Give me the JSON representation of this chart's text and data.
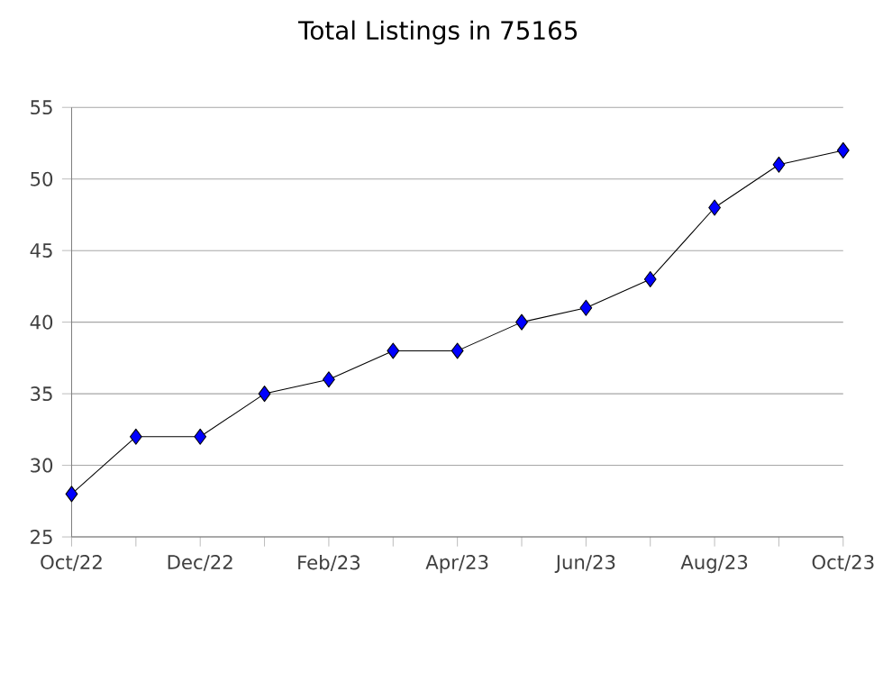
{
  "chart_data": {
    "type": "line",
    "title": "Total Listings in 75165",
    "categories": [
      "Oct/22",
      null,
      "Dec/22",
      null,
      "Feb/23",
      null,
      "Apr/23",
      null,
      "Jun/23",
      null,
      "Aug/23",
      null,
      "Oct/23"
    ],
    "series": [
      {
        "color": "#0000ff",
        "values": [
          28,
          32,
          32,
          35,
          36,
          38,
          38,
          40,
          41,
          43,
          48,
          51,
          52
        ]
      }
    ],
    "ylim": [
      25,
      55
    ],
    "yticks": [
      25,
      30,
      35,
      40,
      45,
      50,
      55
    ],
    "grid": "y",
    "marker": "diamond",
    "line_style": "solid"
  }
}
